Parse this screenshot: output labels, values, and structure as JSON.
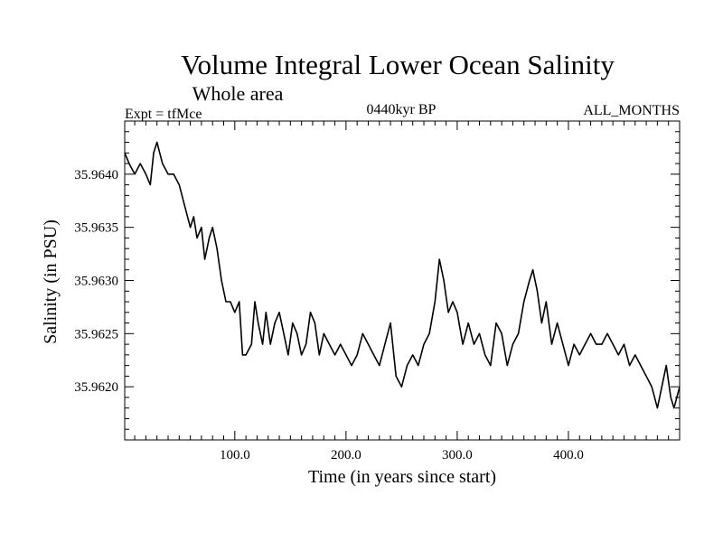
{
  "chart_data": {
    "type": "line",
    "title": "Volume Integral Lower Ocean Salinity",
    "subtitle": "Whole area",
    "left_label": "Expt = tfMce",
    "center_label": "0440kyr BP",
    "right_label": "ALL_MONTHS",
    "xlabel": "Time (in years since start)",
    "ylabel": "Salinity (in PSU)",
    "xlim": [
      1,
      500
    ],
    "ylim": [
      35.9615,
      35.9645
    ],
    "x_ticks": [
      100,
      200,
      300,
      400
    ],
    "x_tick_labels": [
      "100.0",
      "200.0",
      "300.0",
      "400.0"
    ],
    "y_ticks": [
      35.962,
      35.9625,
      35.963,
      35.9635,
      35.964
    ],
    "y_tick_labels": [
      "35.9620",
      "35.9625",
      "35.9630",
      "35.9635",
      "35.9640"
    ],
    "series": [
      {
        "name": "Salinity",
        "color": "#000000",
        "x": [
          1,
          5,
          10,
          15,
          20,
          24,
          27,
          30,
          35,
          40,
          45,
          50,
          55,
          60,
          63,
          66,
          70,
          73,
          77,
          80,
          84,
          88,
          92,
          96,
          100,
          104,
          107,
          110,
          115,
          118,
          121,
          125,
          128,
          132,
          136,
          140,
          144,
          148,
          152,
          156,
          160,
          164,
          168,
          172,
          176,
          180,
          185,
          190,
          195,
          200,
          205,
          210,
          215,
          220,
          225,
          230,
          235,
          240,
          245,
          250,
          255,
          260,
          265,
          270,
          275,
          280,
          284,
          288,
          292,
          296,
          300,
          305,
          310,
          315,
          320,
          325,
          330,
          335,
          340,
          345,
          350,
          355,
          360,
          365,
          368,
          372,
          376,
          380,
          385,
          390,
          395,
          400,
          405,
          410,
          415,
          420,
          425,
          430,
          435,
          440,
          445,
          450,
          455,
          460,
          465,
          470,
          475,
          480,
          484,
          488,
          492,
          495,
          500
        ],
        "values": [
          35.9642,
          35.9641,
          35.964,
          35.9641,
          35.964,
          35.9639,
          35.9642,
          35.9643,
          35.9641,
          35.964,
          35.964,
          35.9639,
          35.9637,
          35.9635,
          35.9636,
          35.9634,
          35.9635,
          35.9632,
          35.9634,
          35.9635,
          35.9633,
          35.963,
          35.9628,
          35.9628,
          35.9627,
          35.9628,
          35.9623,
          35.9623,
          35.9624,
          35.9628,
          35.9626,
          35.9624,
          35.9627,
          35.9624,
          35.9626,
          35.9627,
          35.9625,
          35.9623,
          35.9626,
          35.9625,
          35.9623,
          35.9624,
          35.9627,
          35.9626,
          35.9623,
          35.9625,
          35.9624,
          35.9623,
          35.9624,
          35.9623,
          35.9622,
          35.9623,
          35.9625,
          35.9624,
          35.9623,
          35.9622,
          35.9624,
          35.9626,
          35.9621,
          35.962,
          35.9622,
          35.9623,
          35.9622,
          35.9624,
          35.9625,
          35.9628,
          35.9632,
          35.963,
          35.9627,
          35.9628,
          35.9627,
          35.9624,
          35.9626,
          35.9624,
          35.9625,
          35.9623,
          35.9622,
          35.9626,
          35.9625,
          35.9622,
          35.9624,
          35.9625,
          35.9628,
          35.963,
          35.9631,
          35.9629,
          35.9626,
          35.9628,
          35.9624,
          35.9626,
          35.9624,
          35.9622,
          35.9624,
          35.9623,
          35.9624,
          35.9625,
          35.9624,
          35.9624,
          35.9625,
          35.9624,
          35.9623,
          35.9624,
          35.9622,
          35.9623,
          35.9622,
          35.9621,
          35.962,
          35.9618,
          35.962,
          35.9622,
          35.9619,
          35.9618,
          35.962
        ]
      }
    ]
  }
}
